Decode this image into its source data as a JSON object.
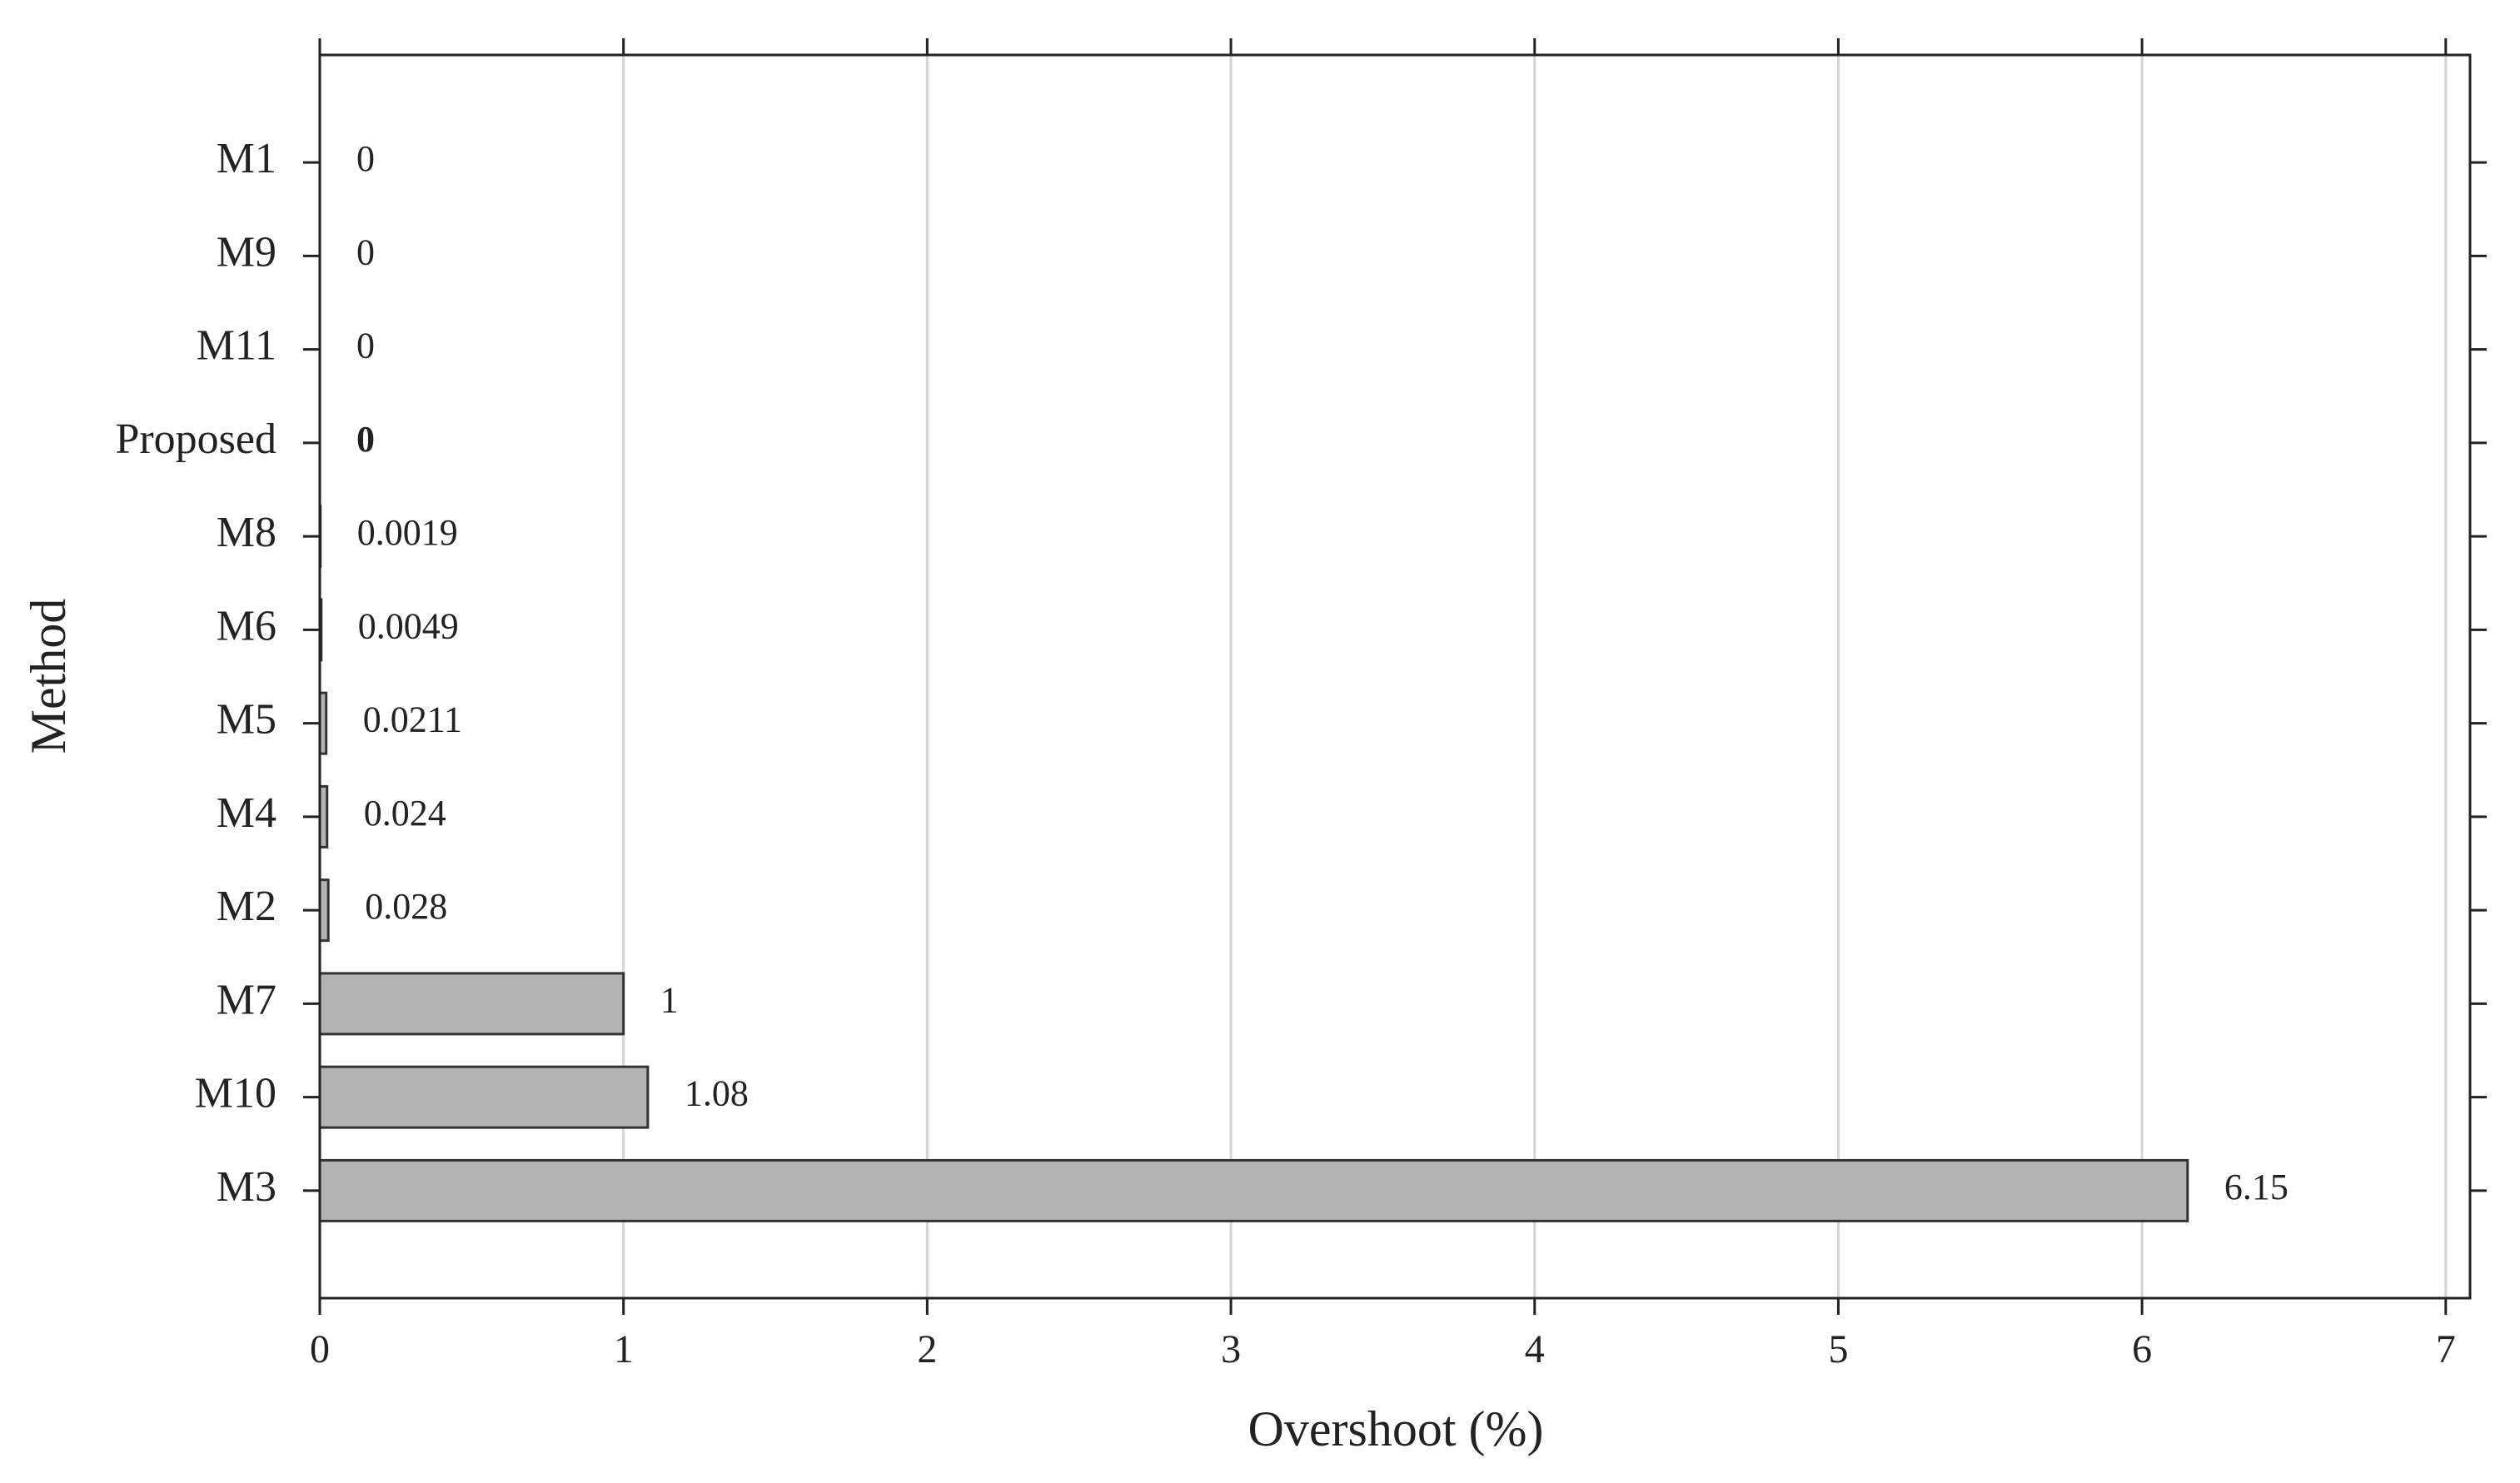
{
  "chart_data": {
    "type": "bar",
    "orientation": "horizontal",
    "xlabel": "Overshoot (%)",
    "ylabel": "Method",
    "categories": [
      "M1",
      "M9",
      "M11",
      "Proposed",
      "M8",
      "M6",
      "M5",
      "M4",
      "M2",
      "M7",
      "M10",
      "M3"
    ],
    "values": [
      0,
      0,
      0,
      0,
      0.0019,
      0.0049,
      0.0211,
      0.024,
      0.028,
      1,
      1.08,
      6.15
    ],
    "color": "#b3b3b3",
    "value_label_colors": [
      "#222222",
      "#222222",
      "#222222",
      "#e8251b",
      "#222222",
      "#222222",
      "#222222",
      "#222222",
      "#222222",
      "#222222",
      "#222222",
      "#222222"
    ],
    "xlim": [
      0,
      7.08
    ],
    "xticks": [
      0,
      1,
      2,
      3,
      4,
      5,
      6,
      7
    ],
    "grid": true
  }
}
